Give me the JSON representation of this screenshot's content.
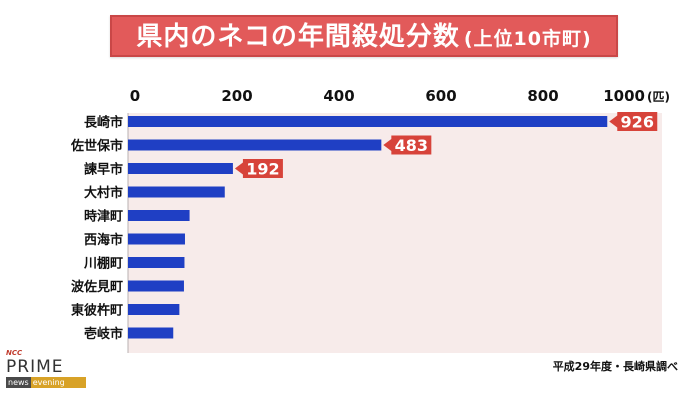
{
  "title": {
    "main": "県内のネコの年間殺処分数",
    "sub": "(上位10市町)"
  },
  "source_note": "平成29年度・長崎県調べ",
  "logo": {
    "brand": "NCC",
    "name": "PRIME",
    "tag_left": "news",
    "tag_right": "evening"
  },
  "colors": {
    "bar": "#1f3fc4",
    "plot_background": "#f7ebea",
    "title_background": "#e25a5a",
    "callout": "#d7433a"
  },
  "chart_data": {
    "type": "bar",
    "orientation": "horizontal",
    "title": "県内のネコの年間殺処分数(上位10市町)",
    "categories": [
      "長崎市",
      "佐世保市",
      "諫早市",
      "大村市",
      "時津町",
      "西海市",
      "川棚町",
      "波佐見町",
      "東彼杵町",
      "壱岐市"
    ],
    "values": [
      926,
      483,
      192,
      176,
      107,
      98,
      97,
      96,
      87,
      75
    ],
    "labeled": [
      926,
      483,
      192
    ],
    "xlim": [
      0,
      1000
    ],
    "xticks": [
      0,
      200,
      400,
      600,
      800,
      1000
    ],
    "xunit": "(匹)",
    "xaxis_position": "top",
    "grid": false,
    "legend": "none",
    "source": "平成29年度・長崎県調べ"
  }
}
